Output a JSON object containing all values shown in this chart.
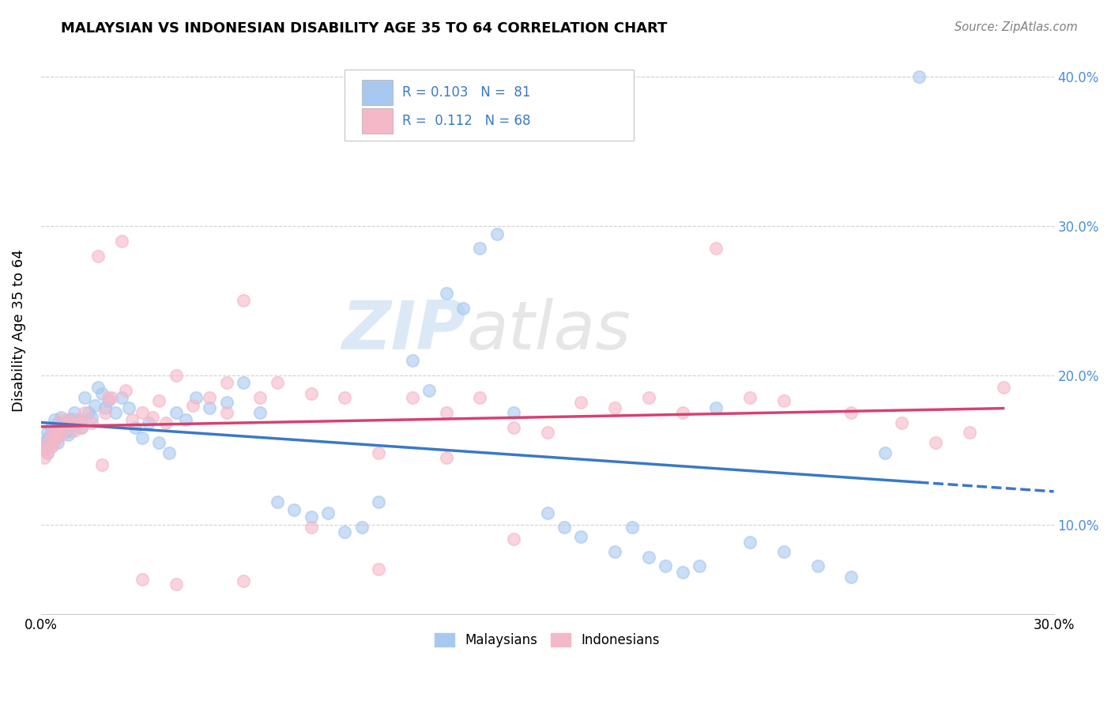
{
  "title": "MALAYSIAN VS INDONESIAN DISABILITY AGE 35 TO 64 CORRELATION CHART",
  "source": "Source: ZipAtlas.com",
  "ylabel": "Disability Age 35 to 64",
  "x_min": 0.0,
  "x_max": 0.3,
  "y_min": 0.04,
  "y_max": 0.42,
  "y_ticks": [
    0.1,
    0.2,
    0.3,
    0.4
  ],
  "y_tick_labels": [
    "10.0%",
    "20.0%",
    "30.0%",
    "40.0%"
  ],
  "x_ticks": [
    0.0,
    0.3
  ],
  "x_tick_labels": [
    "0.0%",
    "30.0%"
  ],
  "malaysian_color": "#a8c8f0",
  "indonesian_color": "#f5b8c8",
  "line_malaysian_color": "#3a78c9",
  "line_indonesian_color": "#d94070",
  "background_color": "#ffffff",
  "grid_color": "#cccccc",
  "watermark_zip": "ZIP",
  "watermark_atlas": "atlas",
  "malaysian_x": [
    0.001,
    0.001,
    0.002,
    0.002,
    0.002,
    0.002,
    0.003,
    0.003,
    0.003,
    0.003,
    0.004,
    0.004,
    0.004,
    0.005,
    0.005,
    0.005,
    0.006,
    0.006,
    0.007,
    0.007,
    0.008,
    0.008,
    0.009,
    0.009,
    0.01,
    0.01,
    0.011,
    0.012,
    0.013,
    0.014,
    0.015,
    0.016,
    0.017,
    0.018,
    0.019,
    0.02,
    0.022,
    0.024,
    0.026,
    0.028,
    0.03,
    0.032,
    0.035,
    0.038,
    0.04,
    0.043,
    0.046,
    0.05,
    0.055,
    0.06,
    0.065,
    0.07,
    0.075,
    0.08,
    0.085,
    0.09,
    0.095,
    0.1,
    0.11,
    0.115,
    0.12,
    0.125,
    0.13,
    0.135,
    0.14,
    0.15,
    0.155,
    0.16,
    0.17,
    0.175,
    0.18,
    0.185,
    0.19,
    0.195,
    0.2,
    0.21,
    0.22,
    0.23,
    0.24,
    0.25,
    0.26
  ],
  "malaysian_y": [
    0.155,
    0.15,
    0.148,
    0.155,
    0.162,
    0.158,
    0.152,
    0.16,
    0.155,
    0.165,
    0.158,
    0.162,
    0.17,
    0.155,
    0.16,
    0.168,
    0.165,
    0.172,
    0.162,
    0.168,
    0.16,
    0.17,
    0.163,
    0.171,
    0.167,
    0.175,
    0.17,
    0.165,
    0.185,
    0.175,
    0.172,
    0.18,
    0.192,
    0.188,
    0.178,
    0.183,
    0.175,
    0.185,
    0.178,
    0.165,
    0.158,
    0.168,
    0.155,
    0.148,
    0.175,
    0.17,
    0.185,
    0.178,
    0.182,
    0.195,
    0.175,
    0.115,
    0.11,
    0.105,
    0.108,
    0.095,
    0.098,
    0.115,
    0.21,
    0.19,
    0.255,
    0.245,
    0.285,
    0.295,
    0.175,
    0.108,
    0.098,
    0.092,
    0.082,
    0.098,
    0.078,
    0.072,
    0.068,
    0.072,
    0.178,
    0.088,
    0.082,
    0.072,
    0.065,
    0.148,
    0.4
  ],
  "indonesian_x": [
    0.001,
    0.001,
    0.002,
    0.002,
    0.003,
    0.003,
    0.004,
    0.004,
    0.005,
    0.005,
    0.006,
    0.006,
    0.007,
    0.008,
    0.009,
    0.01,
    0.011,
    0.012,
    0.013,
    0.015,
    0.017,
    0.019,
    0.021,
    0.024,
    0.027,
    0.03,
    0.033,
    0.037,
    0.04,
    0.045,
    0.05,
    0.055,
    0.06,
    0.065,
    0.07,
    0.08,
    0.09,
    0.1,
    0.11,
    0.12,
    0.13,
    0.14,
    0.15,
    0.16,
    0.17,
    0.18,
    0.19,
    0.2,
    0.21,
    0.22,
    0.24,
    0.255,
    0.265,
    0.275,
    0.285,
    0.04,
    0.06,
    0.08,
    0.1,
    0.12,
    0.14,
    0.03,
    0.025,
    0.018,
    0.012,
    0.02,
    0.035,
    0.055
  ],
  "indonesian_y": [
    0.15,
    0.145,
    0.155,
    0.148,
    0.152,
    0.16,
    0.155,
    0.162,
    0.158,
    0.165,
    0.16,
    0.17,
    0.165,
    0.17,
    0.168,
    0.163,
    0.17,
    0.165,
    0.175,
    0.168,
    0.28,
    0.175,
    0.185,
    0.29,
    0.17,
    0.175,
    0.172,
    0.168,
    0.2,
    0.18,
    0.185,
    0.195,
    0.25,
    0.185,
    0.195,
    0.188,
    0.185,
    0.07,
    0.185,
    0.175,
    0.185,
    0.165,
    0.162,
    0.182,
    0.178,
    0.185,
    0.175,
    0.285,
    0.185,
    0.183,
    0.175,
    0.168,
    0.155,
    0.162,
    0.192,
    0.06,
    0.062,
    0.098,
    0.148,
    0.145,
    0.09,
    0.063,
    0.19,
    0.14,
    0.168,
    0.185,
    0.183,
    0.175
  ]
}
